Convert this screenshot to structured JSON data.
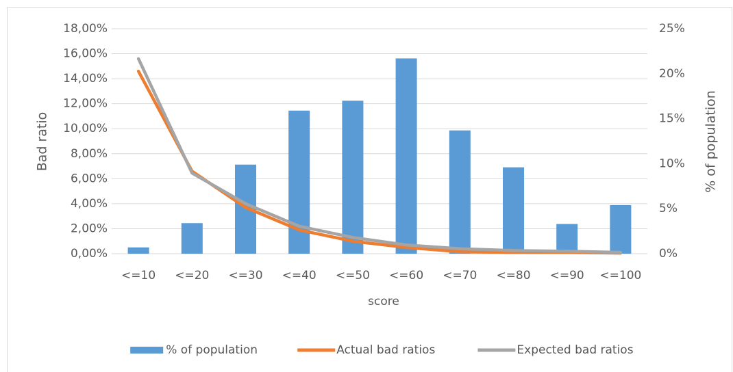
{
  "chart_data": {
    "type": "combo",
    "x_label": "score",
    "y_label": "Bad ratio",
    "y2_label": "% of population",
    "categories": [
      "<=10",
      "<=20",
      "<=30",
      "<=40",
      "<=50",
      "<=60",
      "<=70",
      "<=80",
      "<=90",
      "<=100"
    ],
    "series": [
      {
        "name": "% of population",
        "type": "bar",
        "axis": "y2",
        "color": "#5b9bd5",
        "values": [
          0.7,
          3.4,
          9.9,
          15.9,
          17.0,
          21.7,
          13.7,
          9.6,
          3.3,
          5.4
        ]
      },
      {
        "name": "Actual bad ratios",
        "type": "line",
        "color": "#ed7d31",
        "values": [
          14.6,
          6.6,
          3.7,
          1.9,
          1.0,
          0.5,
          0.15,
          0.1,
          0.1,
          0.05
        ]
      },
      {
        "name": "Expected bad ratios",
        "type": "line",
        "color": "#a5a5a5",
        "values": [
          15.6,
          6.45,
          4.0,
          2.2,
          1.3,
          0.7,
          0.4,
          0.25,
          0.2,
          0.1
        ]
      }
    ],
    "ylim": [
      0,
      18
    ],
    "yticks": [
      {
        "value": 0,
        "label": "0,00%"
      },
      {
        "value": 2,
        "label": "2,00%"
      },
      {
        "value": 4,
        "label": "4,00%"
      },
      {
        "value": 6,
        "label": "6,00%"
      },
      {
        "value": 8,
        "label": "8,00%"
      },
      {
        "value": 10,
        "label": "10,00%"
      },
      {
        "value": 12,
        "label": "12,00%"
      },
      {
        "value": 14,
        "label": "14,00%"
      },
      {
        "value": 16,
        "label": "16,00%"
      },
      {
        "value": 18,
        "label": "18,00%"
      }
    ],
    "y2lim": [
      0,
      25
    ],
    "y2ticks": [
      {
        "value": 0,
        "label": "0%"
      },
      {
        "value": 5,
        "label": "5%"
      },
      {
        "value": 10,
        "label": "10%"
      },
      {
        "value": 15,
        "label": "15%"
      },
      {
        "value": 20,
        "label": "20%"
      },
      {
        "value": 25,
        "label": "25%"
      }
    ],
    "grid": true,
    "legend": "bottom"
  }
}
